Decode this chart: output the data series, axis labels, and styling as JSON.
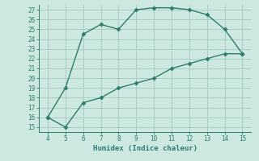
{
  "xlabel": "Humidex (Indice chaleur)",
  "x_upper": [
    4,
    5,
    6,
    7,
    8,
    9,
    10,
    11,
    12,
    13,
    14,
    15
  ],
  "y_upper": [
    16,
    19,
    24.5,
    25.5,
    25,
    27,
    27.2,
    27.2,
    27,
    26.5,
    25,
    22.5
  ],
  "x_lower": [
    4,
    5,
    6,
    7,
    8,
    9,
    10,
    11,
    12,
    13,
    14,
    15
  ],
  "y_lower": [
    16,
    15,
    17.5,
    18,
    19,
    19.5,
    20,
    21,
    21.5,
    22,
    22.5,
    22.5
  ],
  "line_color": "#2e7d6e",
  "bg_color": "#cce8e0",
  "grid_color": "#aaccc4",
  "xlim": [
    3.5,
    15.5
  ],
  "ylim": [
    14.5,
    27.5
  ],
  "xticks": [
    4,
    5,
    6,
    7,
    8,
    9,
    10,
    11,
    12,
    13,
    14,
    15
  ],
  "yticks": [
    15,
    16,
    17,
    18,
    19,
    20,
    21,
    22,
    23,
    24,
    25,
    26,
    27
  ],
  "marker": "D",
  "markersize": 2.5,
  "linewidth": 1.0
}
